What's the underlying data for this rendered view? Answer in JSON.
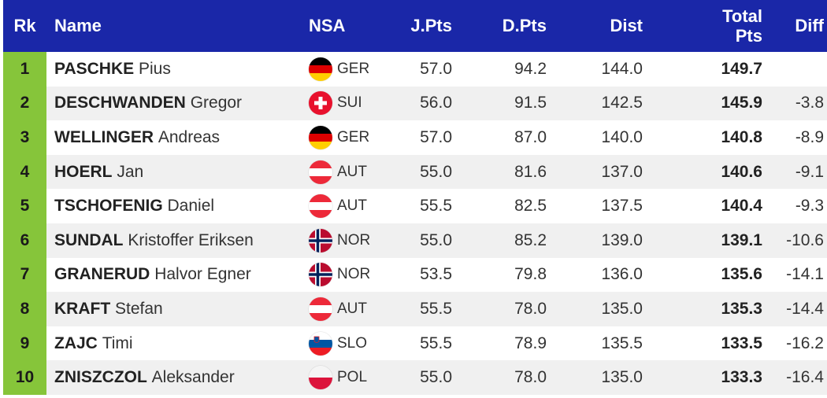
{
  "header": {
    "rk": "Rk",
    "name": "Name",
    "nsa": "NSA",
    "jpts": "J.Pts",
    "dpts": "D.Pts",
    "dist": "Dist",
    "total_line1": "Total",
    "total_line2": "Pts",
    "diff": "Diff"
  },
  "colors": {
    "header_bg": "#1a27a8",
    "rank_bg": "#86c53a",
    "alt_row_bg": "#f0f0f0"
  },
  "rows": [
    {
      "rk": "1",
      "last": "PASCHKE",
      "first": "Pius",
      "flag": "germany-flag-icon",
      "nsa": "GER",
      "jpts": "57.0",
      "dpts": "94.2",
      "dist": "144.0",
      "total": "149.7",
      "diff": ""
    },
    {
      "rk": "2",
      "last": "DESCHWANDEN",
      "first": "Gregor",
      "flag": "switzerland-flag-icon",
      "nsa": "SUI",
      "jpts": "56.0",
      "dpts": "91.5",
      "dist": "142.5",
      "total": "145.9",
      "diff": "-3.8"
    },
    {
      "rk": "3",
      "last": "WELLINGER",
      "first": "Andreas",
      "flag": "germany-flag-icon",
      "nsa": "GER",
      "jpts": "57.0",
      "dpts": "87.0",
      "dist": "140.0",
      "total": "140.8",
      "diff": "-8.9"
    },
    {
      "rk": "4",
      "last": "HOERL",
      "first": "Jan",
      "flag": "austria-flag-icon",
      "nsa": "AUT",
      "jpts": "55.0",
      "dpts": "81.6",
      "dist": "137.0",
      "total": "140.6",
      "diff": "-9.1"
    },
    {
      "rk": "5",
      "last": "TSCHOFENIG",
      "first": "Daniel",
      "flag": "austria-flag-icon",
      "nsa": "AUT",
      "jpts": "55.5",
      "dpts": "82.5",
      "dist": "137.5",
      "total": "140.4",
      "diff": "-9.3"
    },
    {
      "rk": "6",
      "last": "SUNDAL",
      "first": "Kristoffer Eriksen",
      "flag": "norway-flag-icon",
      "nsa": "NOR",
      "jpts": "55.0",
      "dpts": "85.2",
      "dist": "139.0",
      "total": "139.1",
      "diff": "-10.6"
    },
    {
      "rk": "7",
      "last": "GRANERUD",
      "first": "Halvor Egner",
      "flag": "norway-flag-icon",
      "nsa": "NOR",
      "jpts": "53.5",
      "dpts": "79.8",
      "dist": "136.0",
      "total": "135.6",
      "diff": "-14.1"
    },
    {
      "rk": "8",
      "last": "KRAFT",
      "first": "Stefan",
      "flag": "austria-flag-icon",
      "nsa": "AUT",
      "jpts": "55.5",
      "dpts": "78.0",
      "dist": "135.0",
      "total": "135.3",
      "diff": "-14.4"
    },
    {
      "rk": "9",
      "last": "ZAJC",
      "first": "Timi",
      "flag": "slovenia-flag-icon",
      "nsa": "SLO",
      "jpts": "55.5",
      "dpts": "78.9",
      "dist": "135.5",
      "total": "133.5",
      "diff": "-16.2"
    },
    {
      "rk": "10",
      "last": "ZNISZCZOL",
      "first": "Aleksander",
      "flag": "poland-flag-icon",
      "nsa": "POL",
      "jpts": "55.0",
      "dpts": "78.0",
      "dist": "135.0",
      "total": "133.3",
      "diff": "-16.4"
    }
  ]
}
